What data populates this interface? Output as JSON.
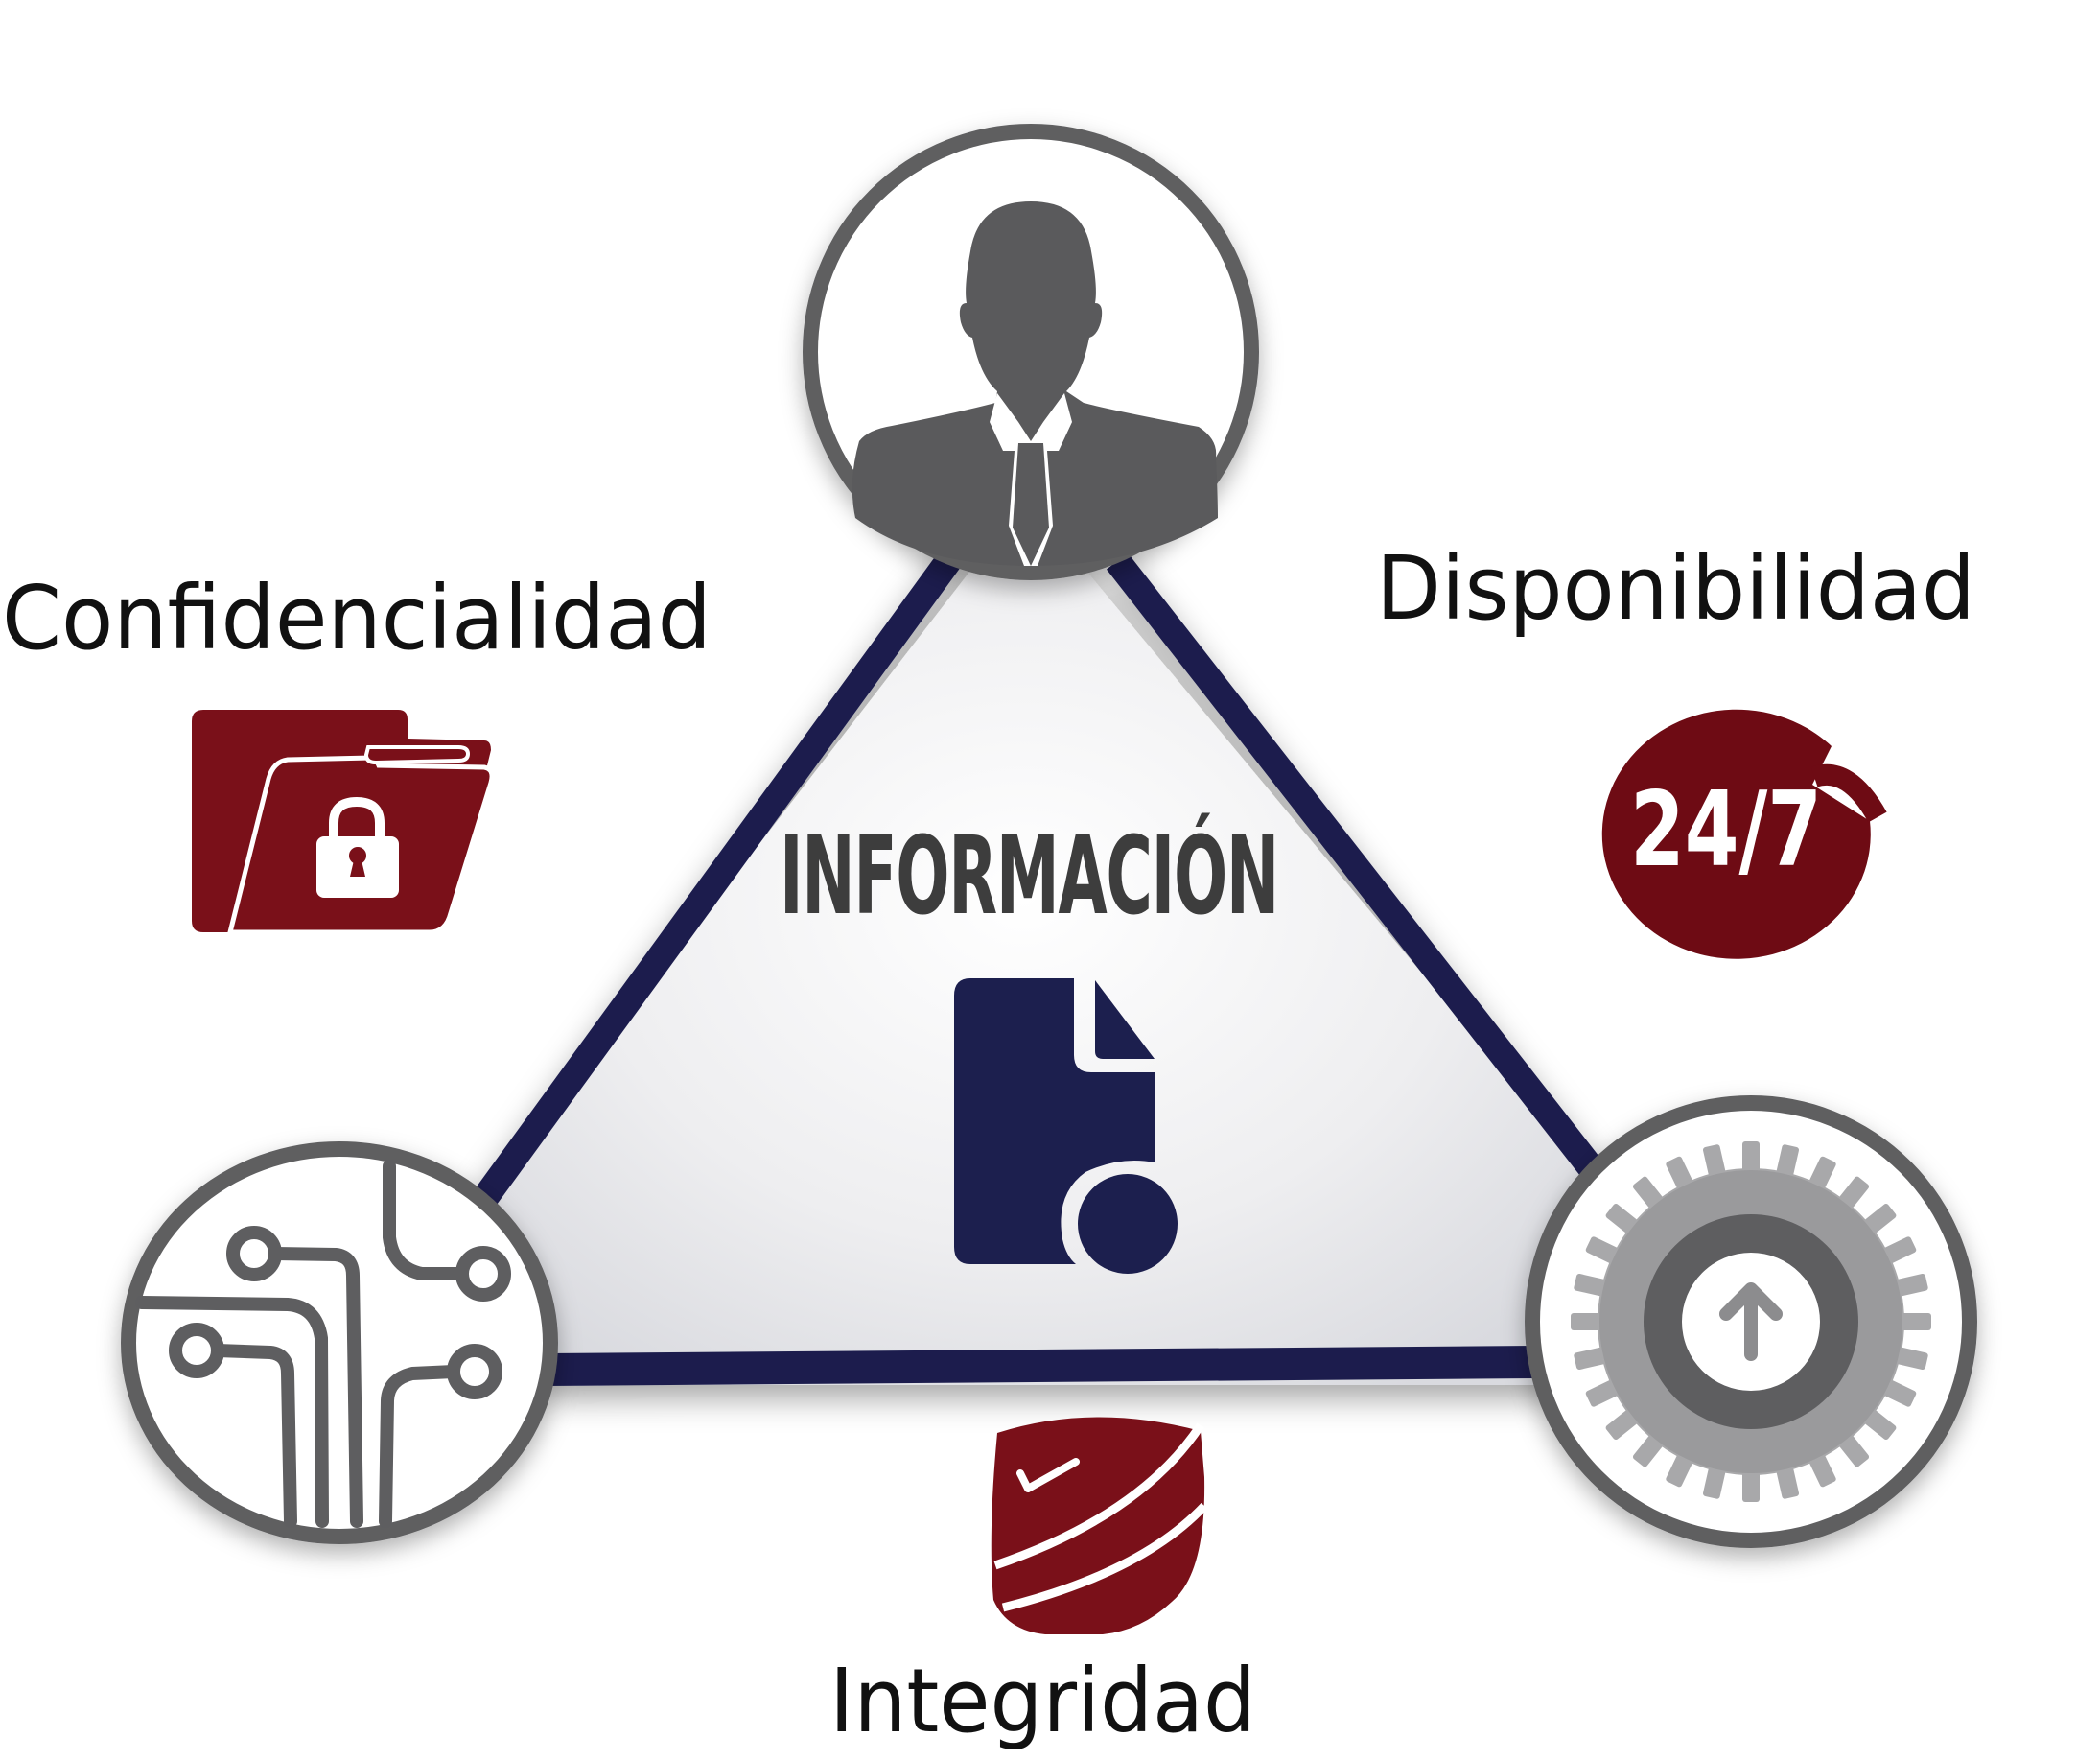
{
  "diagram": {
    "center_title": "INFORMACIÓN",
    "labels": {
      "confidencialidad": "Confidencialidad",
      "disponibilidad": "Disponibilidad",
      "integridad": "Integridad"
    },
    "badge_text": "24/7"
  },
  "colors": {
    "triangle_stroke": "#1c1f4e",
    "circle_stroke": "#5e5e60",
    "silhouette": "#5a5a5c",
    "accent_red": "#7a1019",
    "document_blue": "#1c1f4e",
    "gear": "#6a6a6c"
  },
  "icons": {
    "top": "person-silhouette-icon",
    "bottom_left": "circuit-icon",
    "bottom_right": "gear-upload-icon",
    "confidencialidad": "locked-folder-icon",
    "disponibilidad": "24-7-icon",
    "integridad": "shield-check-icon",
    "center": "document-icon"
  }
}
